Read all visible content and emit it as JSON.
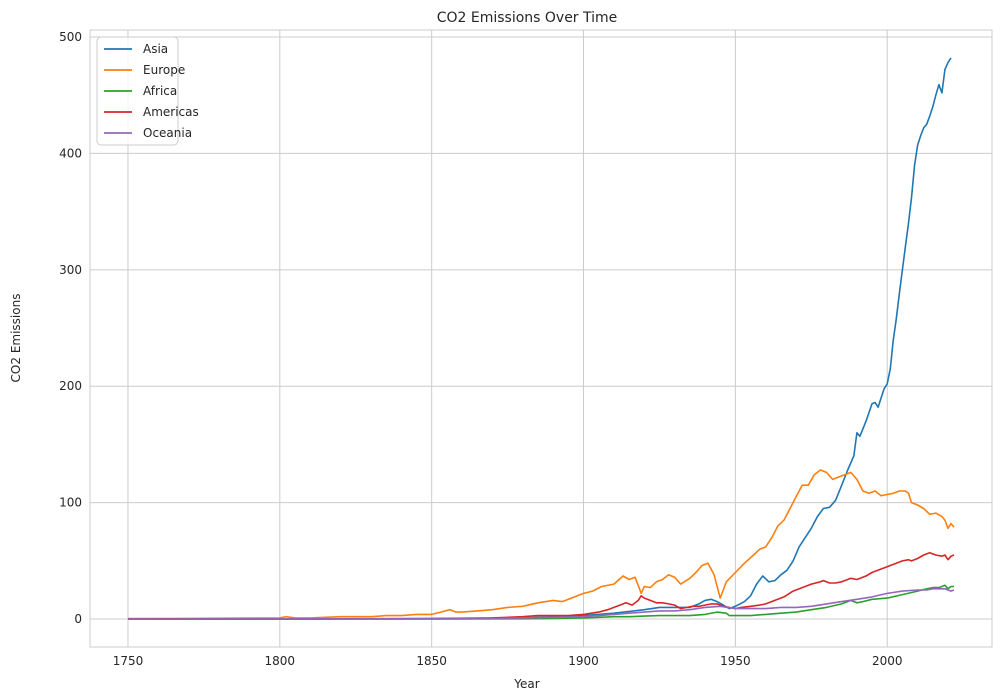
{
  "chart_data": {
    "type": "line",
    "title": "CO2 Emissions Over Time",
    "xlabel": "Year",
    "ylabel": "CO2 Emissions",
    "xlim": [
      1737.5,
      2034.5
    ],
    "ylim": [
      -24,
      506
    ],
    "xticks": [
      1750,
      1800,
      1850,
      1900,
      1950,
      2000
    ],
    "yticks": [
      0,
      100,
      200,
      300,
      400,
      500
    ],
    "grid": true,
    "legend_position": "top-left",
    "series": [
      {
        "name": "Asia",
        "color": "#1f77b4",
        "points": [
          [
            1750,
            0
          ],
          [
            1800,
            0
          ],
          [
            1850,
            0.3
          ],
          [
            1880,
            1
          ],
          [
            1900,
            3
          ],
          [
            1910,
            5
          ],
          [
            1920,
            8
          ],
          [
            1925,
            10
          ],
          [
            1930,
            10
          ],
          [
            1935,
            10
          ],
          [
            1938,
            13
          ],
          [
            1940,
            16
          ],
          [
            1942,
            17
          ],
          [
            1944,
            15
          ],
          [
            1946,
            12
          ],
          [
            1948,
            9
          ],
          [
            1950,
            11
          ],
          [
            1953,
            15
          ],
          [
            1955,
            20
          ],
          [
            1957,
            30
          ],
          [
            1959,
            37
          ],
          [
            1961,
            32
          ],
          [
            1963,
            33
          ],
          [
            1965,
            38
          ],
          [
            1967,
            42
          ],
          [
            1969,
            50
          ],
          [
            1971,
            62
          ],
          [
            1973,
            70
          ],
          [
            1975,
            78
          ],
          [
            1977,
            88
          ],
          [
            1979,
            95
          ],
          [
            1981,
            96
          ],
          [
            1983,
            102
          ],
          [
            1985,
            115
          ],
          [
            1987,
            128
          ],
          [
            1989,
            140
          ],
          [
            1990,
            160
          ],
          [
            1991,
            157
          ],
          [
            1993,
            170
          ],
          [
            1995,
            185
          ],
          [
            1996,
            186
          ],
          [
            1997,
            182
          ],
          [
            1998,
            190
          ],
          [
            1999,
            198
          ],
          [
            2000,
            202
          ],
          [
            2001,
            215
          ],
          [
            2002,
            240
          ],
          [
            2003,
            258
          ],
          [
            2004,
            280
          ],
          [
            2005,
            300
          ],
          [
            2006,
            320
          ],
          [
            2007,
            340
          ],
          [
            2008,
            362
          ],
          [
            2009,
            390
          ],
          [
            2010,
            407
          ],
          [
            2011,
            415
          ],
          [
            2012,
            422
          ],
          [
            2013,
            425
          ],
          [
            2014,
            432
          ],
          [
            2015,
            440
          ],
          [
            2016,
            450
          ],
          [
            2017,
            459
          ],
          [
            2018,
            452
          ],
          [
            2019,
            472
          ],
          [
            2020,
            478
          ],
          [
            2021,
            482
          ]
        ]
      },
      {
        "name": "Europe",
        "color": "#ff7f0e",
        "points": [
          [
            1750,
            0.5
          ],
          [
            1770,
            0.6
          ],
          [
            1790,
            0.8
          ],
          [
            1800,
            1
          ],
          [
            1802,
            2
          ],
          [
            1805,
            1
          ],
          [
            1810,
            1
          ],
          [
            1815,
            1.5
          ],
          [
            1820,
            2
          ],
          [
            1825,
            2
          ],
          [
            1830,
            2
          ],
          [
            1835,
            3
          ],
          [
            1840,
            3
          ],
          [
            1845,
            4
          ],
          [
            1850,
            4
          ],
          [
            1853,
            6
          ],
          [
            1856,
            8
          ],
          [
            1858,
            6
          ],
          [
            1860,
            6
          ],
          [
            1865,
            7
          ],
          [
            1870,
            8
          ],
          [
            1875,
            10
          ],
          [
            1880,
            11
          ],
          [
            1885,
            14
          ],
          [
            1890,
            16
          ],
          [
            1893,
            15
          ],
          [
            1896,
            18
          ],
          [
            1900,
            22
          ],
          [
            1903,
            24
          ],
          [
            1906,
            28
          ],
          [
            1910,
            30
          ],
          [
            1913,
            37
          ],
          [
            1915,
            34
          ],
          [
            1917,
            36
          ],
          [
            1919,
            22
          ],
          [
            1920,
            28
          ],
          [
            1922,
            27
          ],
          [
            1924,
            32
          ],
          [
            1926,
            34
          ],
          [
            1928,
            38
          ],
          [
            1930,
            36
          ],
          [
            1932,
            30
          ],
          [
            1935,
            35
          ],
          [
            1937,
            40
          ],
          [
            1939,
            46
          ],
          [
            1941,
            48
          ],
          [
            1943,
            38
          ],
          [
            1945,
            18
          ],
          [
            1947,
            32
          ],
          [
            1950,
            40
          ],
          [
            1953,
            48
          ],
          [
            1956,
            55
          ],
          [
            1958,
            60
          ],
          [
            1960,
            62
          ],
          [
            1962,
            70
          ],
          [
            1964,
            80
          ],
          [
            1966,
            85
          ],
          [
            1968,
            95
          ],
          [
            1970,
            105
          ],
          [
            1972,
            115
          ],
          [
            1974,
            115
          ],
          [
            1976,
            124
          ],
          [
            1978,
            128
          ],
          [
            1980,
            126
          ],
          [
            1982,
            120
          ],
          [
            1984,
            122
          ],
          [
            1986,
            124
          ],
          [
            1988,
            126
          ],
          [
            1990,
            120
          ],
          [
            1992,
            110
          ],
          [
            1994,
            108
          ],
          [
            1996,
            110
          ],
          [
            1998,
            106
          ],
          [
            2000,
            107
          ],
          [
            2002,
            108
          ],
          [
            2004,
            110
          ],
          [
            2006,
            110
          ],
          [
            2007,
            108
          ],
          [
            2008,
            100
          ],
          [
            2010,
            98
          ],
          [
            2012,
            95
          ],
          [
            2014,
            90
          ],
          [
            2016,
            91
          ],
          [
            2018,
            88
          ],
          [
            2019,
            85
          ],
          [
            2020,
            78
          ],
          [
            2021,
            82
          ],
          [
            2022,
            79
          ]
        ]
      },
      {
        "name": "Africa",
        "color": "#2ca02c",
        "points": [
          [
            1750,
            0
          ],
          [
            1850,
            0
          ],
          [
            1880,
            0.2
          ],
          [
            1890,
            0.5
          ],
          [
            1900,
            1
          ],
          [
            1905,
            1.5
          ],
          [
            1910,
            2
          ],
          [
            1915,
            2
          ],
          [
            1920,
            2.5
          ],
          [
            1925,
            3
          ],
          [
            1930,
            3
          ],
          [
            1935,
            3
          ],
          [
            1940,
            4
          ],
          [
            1944,
            6
          ],
          [
            1947,
            5
          ],
          [
            1948,
            3
          ],
          [
            1950,
            3
          ],
          [
            1955,
            3
          ],
          [
            1960,
            4
          ],
          [
            1965,
            5
          ],
          [
            1970,
            6
          ],
          [
            1975,
            8
          ],
          [
            1980,
            10
          ],
          [
            1985,
            13
          ],
          [
            1988,
            16
          ],
          [
            1990,
            14
          ],
          [
            1992,
            15
          ],
          [
            1995,
            17
          ],
          [
            2000,
            18
          ],
          [
            2005,
            21
          ],
          [
            2010,
            24
          ],
          [
            2013,
            26
          ],
          [
            2015,
            27
          ],
          [
            2017,
            27
          ],
          [
            2018,
            28
          ],
          [
            2019,
            29
          ],
          [
            2020,
            26
          ],
          [
            2021,
            28
          ],
          [
            2022,
            28
          ]
        ]
      },
      {
        "name": "Americas",
        "color": "#d62728",
        "points": [
          [
            1750,
            0
          ],
          [
            1800,
            0.1
          ],
          [
            1850,
            0.5
          ],
          [
            1870,
            1
          ],
          [
            1880,
            2
          ],
          [
            1885,
            3
          ],
          [
            1890,
            3
          ],
          [
            1895,
            3
          ],
          [
            1900,
            4
          ],
          [
            1905,
            6
          ],
          [
            1908,
            8
          ],
          [
            1910,
            10
          ],
          [
            1912,
            12
          ],
          [
            1914,
            14
          ],
          [
            1916,
            12
          ],
          [
            1918,
            16
          ],
          [
            1919,
            20
          ],
          [
            1920,
            18
          ],
          [
            1922,
            16
          ],
          [
            1924,
            14
          ],
          [
            1926,
            14
          ],
          [
            1928,
            13
          ],
          [
            1930,
            12
          ],
          [
            1932,
            9
          ],
          [
            1934,
            10
          ],
          [
            1936,
            11
          ],
          [
            1938,
            11
          ],
          [
            1940,
            12
          ],
          [
            1942,
            13
          ],
          [
            1944,
            13
          ],
          [
            1946,
            11
          ],
          [
            1948,
            10
          ],
          [
            1950,
            9
          ],
          [
            1952,
            10
          ],
          [
            1955,
            11
          ],
          [
            1958,
            12
          ],
          [
            1960,
            13
          ],
          [
            1963,
            16
          ],
          [
            1966,
            19
          ],
          [
            1969,
            24
          ],
          [
            1972,
            27
          ],
          [
            1975,
            30
          ],
          [
            1978,
            32
          ],
          [
            1979,
            33
          ],
          [
            1981,
            31
          ],
          [
            1983,
            31
          ],
          [
            1985,
            32
          ],
          [
            1987,
            34
          ],
          [
            1988,
            35
          ],
          [
            1990,
            34
          ],
          [
            1993,
            37
          ],
          [
            1995,
            40
          ],
          [
            1998,
            43
          ],
          [
            2000,
            45
          ],
          [
            2003,
            48
          ],
          [
            2005,
            50
          ],
          [
            2007,
            51
          ],
          [
            2008,
            50
          ],
          [
            2010,
            52
          ],
          [
            2012,
            55
          ],
          [
            2014,
            57
          ],
          [
            2016,
            55
          ],
          [
            2018,
            54
          ],
          [
            2019,
            55
          ],
          [
            2020,
            51
          ],
          [
            2021,
            54
          ],
          [
            2022,
            55
          ]
        ]
      },
      {
        "name": "Oceania",
        "color": "#9467bd",
        "points": [
          [
            1750,
            0
          ],
          [
            1800,
            0.1
          ],
          [
            1850,
            0.3
          ],
          [
            1870,
            0.5
          ],
          [
            1880,
            1
          ],
          [
            1890,
            1.5
          ],
          [
            1900,
            2
          ],
          [
            1905,
            3
          ],
          [
            1910,
            4
          ],
          [
            1915,
            5
          ],
          [
            1920,
            6
          ],
          [
            1925,
            7
          ],
          [
            1930,
            7
          ],
          [
            1935,
            8
          ],
          [
            1940,
            10
          ],
          [
            1945,
            11
          ],
          [
            1950,
            9
          ],
          [
            1955,
            9
          ],
          [
            1960,
            9
          ],
          [
            1965,
            10
          ],
          [
            1970,
            10
          ],
          [
            1975,
            11
          ],
          [
            1980,
            13
          ],
          [
            1985,
            15
          ],
          [
            1990,
            17
          ],
          [
            1995,
            19
          ],
          [
            2000,
            22
          ],
          [
            2005,
            24
          ],
          [
            2010,
            25
          ],
          [
            2013,
            25
          ],
          [
            2015,
            26
          ],
          [
            2017,
            26
          ],
          [
            2019,
            26
          ],
          [
            2020,
            25
          ],
          [
            2021,
            24
          ],
          [
            2022,
            25
          ]
        ]
      }
    ]
  }
}
